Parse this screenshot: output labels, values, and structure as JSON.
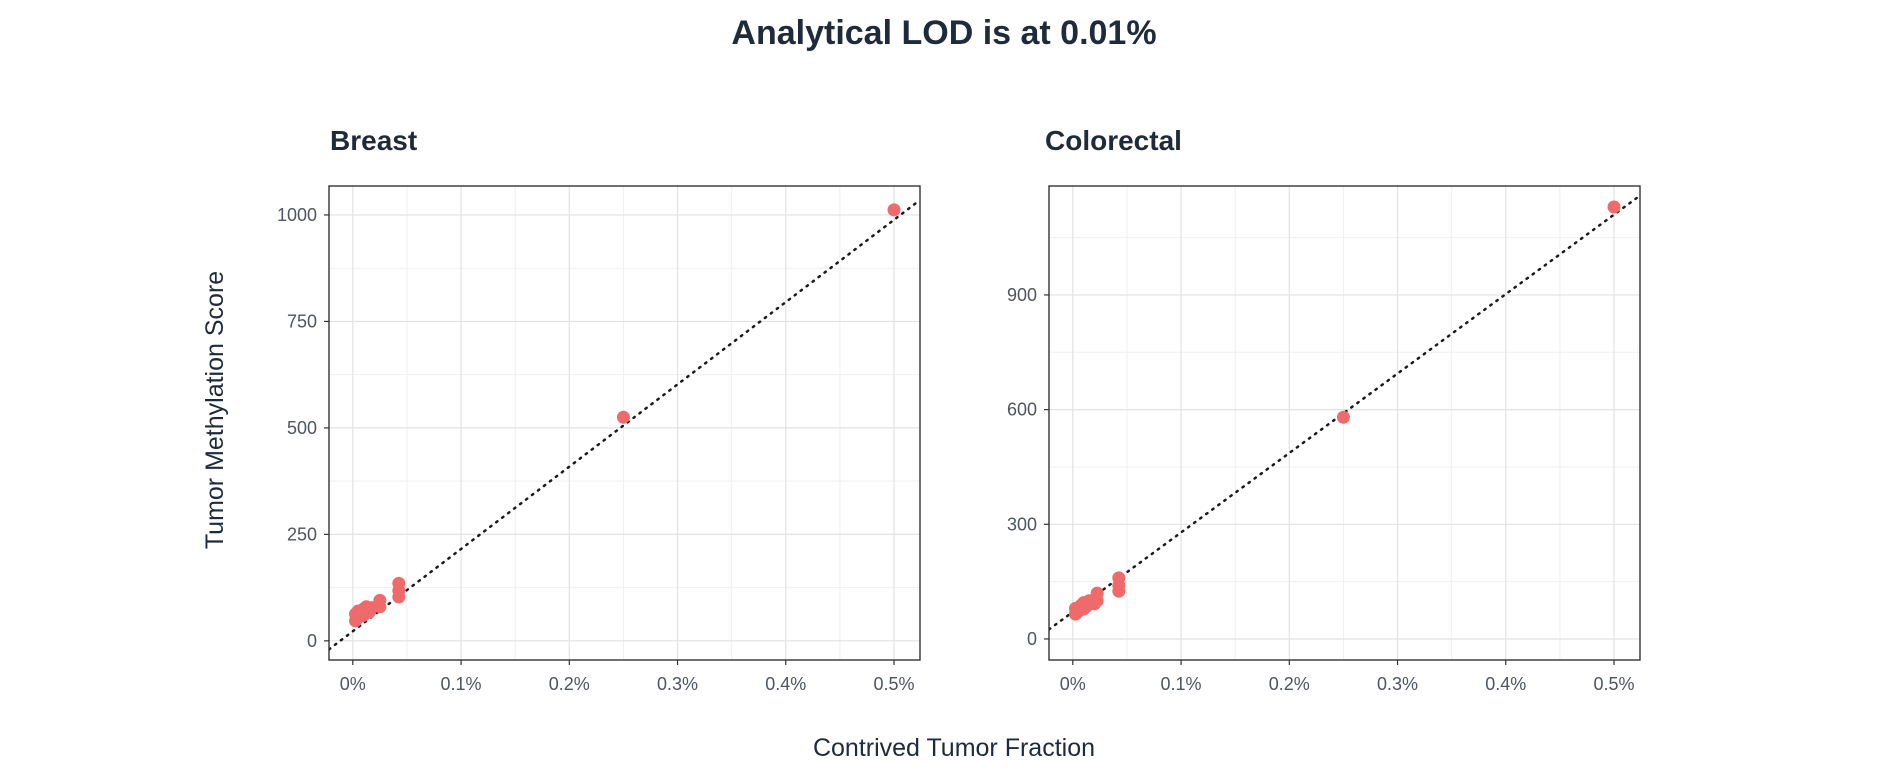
{
  "title": "Analytical LOD is at 0.01%",
  "xlabel": "Contrived Tumor Fraction",
  "ylabel": "Tumor Methylation Score",
  "point_color": "#ef6b6b",
  "chart_data": [
    {
      "type": "scatter",
      "title": "Breast",
      "x_unit": "%",
      "xlim": [
        -0.022,
        0.524
      ],
      "ylim": [
        -45,
        1068
      ],
      "x_ticks": [
        0,
        0.1,
        0.2,
        0.3,
        0.4,
        0.5
      ],
      "x_tick_labels": [
        "0%",
        "0.1%",
        "0.2%",
        "0.3%",
        "0.4%",
        "0.5%"
      ],
      "y_ticks": [
        0,
        250,
        500,
        750,
        1000
      ],
      "y_tick_labels": [
        "0",
        "250",
        "500",
        "750",
        "1000"
      ],
      "grid": true,
      "reference_line": {
        "style": "dotted",
        "from": [
          -0.022,
          -20
        ],
        "to": [
          0.524,
          1035
        ]
      },
      "points": [
        {
          "x": 0.0025,
          "y": 47
        },
        {
          "x": 0.0025,
          "y": 63
        },
        {
          "x": 0.005,
          "y": 55
        },
        {
          "x": 0.005,
          "y": 70
        },
        {
          "x": 0.01,
          "y": 60
        },
        {
          "x": 0.01,
          "y": 75
        },
        {
          "x": 0.0125,
          "y": 80
        },
        {
          "x": 0.015,
          "y": 67
        },
        {
          "x": 0.0175,
          "y": 78
        },
        {
          "x": 0.025,
          "y": 80
        },
        {
          "x": 0.025,
          "y": 95
        },
        {
          "x": 0.0425,
          "y": 103
        },
        {
          "x": 0.0425,
          "y": 118
        },
        {
          "x": 0.0425,
          "y": 135
        },
        {
          "x": 0.25,
          "y": 525
        },
        {
          "x": 0.5,
          "y": 1012
        }
      ]
    },
    {
      "type": "scatter",
      "title": "Colorectal",
      "x_unit": "%",
      "xlim": [
        -0.022,
        0.524
      ],
      "ylim": [
        -55,
        1185
      ],
      "x_ticks": [
        0,
        0.1,
        0.2,
        0.3,
        0.4,
        0.5
      ],
      "x_tick_labels": [
        "0%",
        "0.1%",
        "0.2%",
        "0.3%",
        "0.4%",
        "0.5%"
      ],
      "y_ticks": [
        0,
        300,
        600,
        900
      ],
      "y_tick_labels": [
        "0",
        "300",
        "600",
        "900"
      ],
      "grid": true,
      "reference_line": {
        "style": "dotted",
        "from": [
          -0.022,
          25
        ],
        "to": [
          0.524,
          1160
        ]
      },
      "points": [
        {
          "x": 0.0025,
          "y": 65
        },
        {
          "x": 0.0025,
          "y": 80
        },
        {
          "x": 0.005,
          "y": 72
        },
        {
          "x": 0.0075,
          "y": 88
        },
        {
          "x": 0.01,
          "y": 78
        },
        {
          "x": 0.01,
          "y": 95
        },
        {
          "x": 0.0125,
          "y": 85
        },
        {
          "x": 0.015,
          "y": 100
        },
        {
          "x": 0.02,
          "y": 92
        },
        {
          "x": 0.0225,
          "y": 100
        },
        {
          "x": 0.0225,
          "y": 120
        },
        {
          "x": 0.0425,
          "y": 125
        },
        {
          "x": 0.0425,
          "y": 140
        },
        {
          "x": 0.0425,
          "y": 160
        },
        {
          "x": 0.25,
          "y": 580
        },
        {
          "x": 0.5,
          "y": 1130
        }
      ]
    }
  ]
}
